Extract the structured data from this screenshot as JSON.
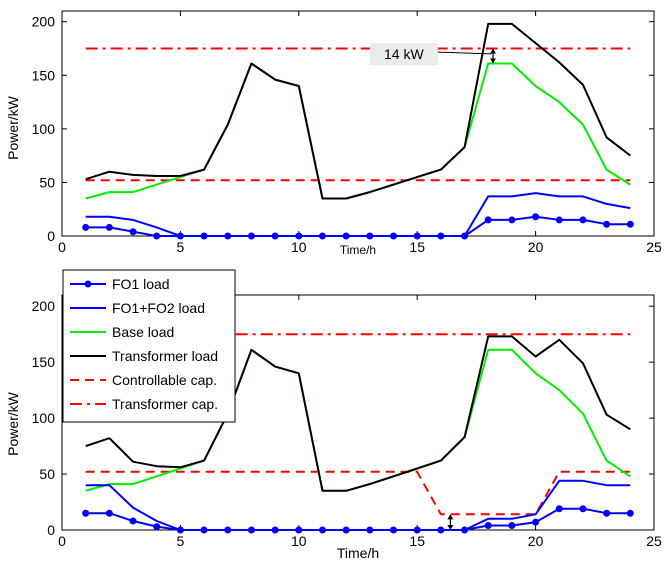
{
  "chart_data": [
    {
      "type": "line",
      "xlabel": "Time/h",
      "ylabel": "Power/kW",
      "xlim": [
        0,
        25
      ],
      "ylim": [
        0,
        210
      ],
      "xticks": [
        0,
        5,
        10,
        15,
        20,
        25
      ],
      "yticks": [
        0,
        50,
        100,
        150,
        200
      ],
      "x": [
        1,
        2,
        3,
        4,
        5,
        6,
        7,
        8,
        9,
        10,
        11,
        12,
        13,
        14,
        15,
        16,
        17,
        18,
        19,
        20,
        21,
        22,
        23,
        24
      ],
      "series": [
        {
          "name": "FO1 load",
          "color": "#0000ff",
          "style": "solid-dots",
          "values": [
            8,
            8,
            4,
            0,
            0,
            0,
            0,
            0,
            0,
            0,
            0,
            0,
            0,
            0,
            0,
            0,
            0,
            15,
            15,
            18,
            15,
            15,
            11,
            11
          ]
        },
        {
          "name": "FO1+FO2 load",
          "color": "#0000ff",
          "style": "solid",
          "values": [
            18,
            18,
            15,
            8,
            0,
            0,
            0,
            0,
            0,
            0,
            0,
            0,
            0,
            0,
            0,
            0,
            0,
            37,
            37,
            40,
            37,
            37,
            30,
            26
          ]
        },
        {
          "name": "Base load",
          "color": "#00ee00",
          "style": "solid",
          "values": [
            35,
            41,
            41,
            48,
            55,
            62,
            104,
            161,
            146,
            140,
            35,
            35,
            41,
            48,
            55,
            62,
            83,
            161,
            161,
            140,
            125,
            104,
            62,
            48
          ]
        },
        {
          "name": "Transformer load",
          "color": "#000000",
          "style": "solid",
          "values": [
            53,
            60,
            57,
            56,
            56,
            62,
            104,
            161,
            146,
            140,
            35,
            35,
            41,
            48,
            55,
            62,
            83,
            198,
            198,
            180,
            162,
            141,
            92,
            75
          ]
        },
        {
          "name": "Controllable cap.",
          "color": "#ff0000",
          "style": "dashed",
          "values": [
            52,
            52,
            52,
            52,
            52,
            52,
            52,
            52,
            52,
            52,
            52,
            52,
            52,
            52,
            52,
            52,
            52,
            52,
            52,
            52,
            52,
            52,
            52,
            52
          ]
        },
        {
          "name": "Transformer cap.",
          "color": "#ff0000",
          "style": "dashdot",
          "values": [
            175,
            175,
            175,
            175,
            175,
            175,
            175,
            175,
            175,
            175,
            175,
            175,
            175,
            175,
            175,
            175,
            175,
            175,
            175,
            175,
            175,
            175,
            175,
            175
          ]
        }
      ],
      "annotations": [
        {
          "text": "14 kW",
          "arrow_x": 18.2,
          "arrow_from": 161,
          "arrow_to": 175
        }
      ]
    },
    {
      "type": "line",
      "xlabel": "Time/h",
      "ylabel": "Power/kW",
      "xlim": [
        0,
        25
      ],
      "ylim": [
        0,
        210
      ],
      "xticks": [
        0,
        5,
        10,
        15,
        20,
        25
      ],
      "yticks": [
        0,
        50,
        100,
        150,
        200
      ],
      "x": [
        1,
        2,
        3,
        4,
        5,
        6,
        7,
        8,
        9,
        10,
        11,
        12,
        13,
        14,
        15,
        16,
        17,
        18,
        19,
        20,
        21,
        22,
        23,
        24
      ],
      "legend": {
        "location": "top-left"
      },
      "series": [
        {
          "name": "FO1 load",
          "color": "#0000ff",
          "style": "solid-dots",
          "values": [
            15,
            15,
            8,
            3,
            0,
            0,
            0,
            0,
            0,
            0,
            0,
            0,
            0,
            0,
            0,
            0,
            0,
            4,
            4,
            7,
            19,
            19,
            15,
            15
          ]
        },
        {
          "name": "FO1+FO2 load",
          "color": "#0000ff",
          "style": "solid",
          "values": [
            40,
            40,
            20,
            8,
            0,
            0,
            0,
            0,
            0,
            0,
            0,
            0,
            0,
            0,
            0,
            0,
            0,
            10,
            10,
            14,
            44,
            44,
            40,
            40
          ]
        },
        {
          "name": "Base load",
          "color": "#00ee00",
          "style": "solid",
          "values": [
            35,
            41,
            41,
            48,
            55,
            62,
            104,
            161,
            146,
            140,
            35,
            35,
            41,
            48,
            55,
            62,
            83,
            161,
            161,
            140,
            125,
            104,
            62,
            48
          ]
        },
        {
          "name": "Transformer load",
          "color": "#000000",
          "style": "solid",
          "values": [
            75,
            82,
            61,
            57,
            56,
            62,
            104,
            161,
            146,
            140,
            35,
            35,
            41,
            48,
            55,
            62,
            83,
            173,
            173,
            155,
            170,
            149,
            103,
            90
          ]
        },
        {
          "name": "Controllable cap.",
          "color": "#ff0000",
          "style": "dashed",
          "values": [
            52,
            52,
            52,
            52,
            52,
            52,
            52,
            52,
            52,
            52,
            52,
            52,
            52,
            52,
            52,
            14,
            14,
            14,
            14,
            14,
            52,
            52,
            52,
            52
          ]
        },
        {
          "name": "Transformer cap.",
          "color": "#ff0000",
          "style": "dashdot",
          "values": [
            175,
            175,
            175,
            175,
            175,
            175,
            175,
            175,
            175,
            175,
            175,
            175,
            175,
            175,
            175,
            175,
            175,
            175,
            175,
            175,
            175,
            175,
            175,
            175
          ]
        }
      ],
      "annotations": [
        {
          "text": "",
          "arrow_x": 16.4,
          "arrow_from": 0,
          "arrow_to": 14
        }
      ]
    }
  ]
}
